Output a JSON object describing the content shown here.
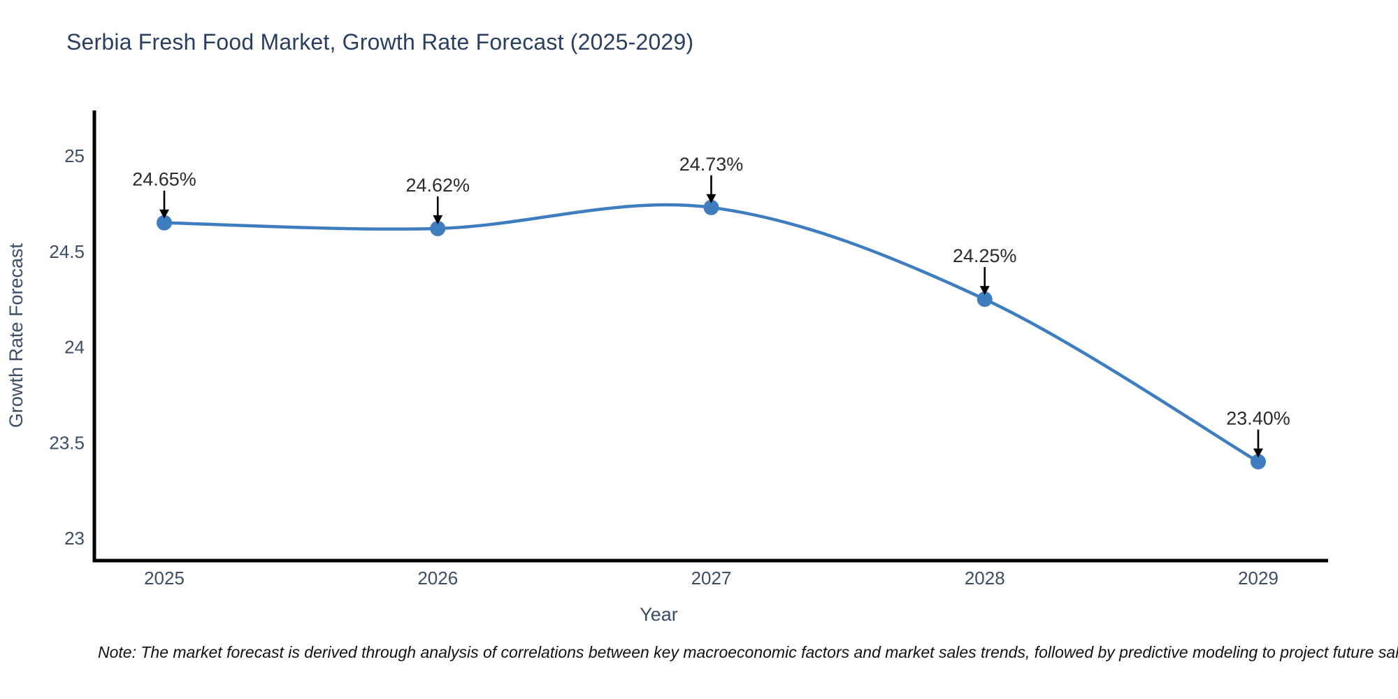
{
  "header": {
    "title": "Serbia Fresh Food Market, Growth Rate Forecast (2025-2029)"
  },
  "chart_data": {
    "type": "line",
    "line_shape": "spline",
    "markers": true,
    "title": "Serbia Fresh Food Market, Growth Rate Forecast (2025-2029)",
    "xlabel": "Year",
    "ylabel": "Growth Rate Forecast",
    "categories": [
      "2025",
      "2026",
      "2027",
      "2028",
      "2029"
    ],
    "series": [
      {
        "name": "Growth Rate Forecast",
        "values": [
          24.65,
          24.62,
          24.73,
          24.25,
          23.4
        ]
      }
    ],
    "point_labels": [
      "24.65%",
      "24.62%",
      "24.73%",
      "24.25%",
      "23.40%"
    ],
    "annotation_arrows": "down-arrow-to-point",
    "yticks": [
      25,
      24.5,
      24,
      23.5,
      23
    ],
    "ytick_labels": [
      "25",
      "24.5",
      "24",
      "23.5",
      "23"
    ],
    "ylim": [
      22.9,
      25.2
    ],
    "grid": false,
    "legend_position": "none"
  },
  "footnote": {
    "text": "Note: The market forecast is derived through analysis of correlations between key macroeconomic factors and market sales trends, followed by predictive modeling to project future sales"
  },
  "colors": {
    "background": "#ffffff",
    "line": "#3E7DBF",
    "marker": "#3E7DBF",
    "axis_line": "#000000",
    "title_text": "#2a3f5f",
    "tick_text": "#3d4d66",
    "axis_label_text": "#3d4d66",
    "annotation_text": "#2b2b2b",
    "arrow": "#000000",
    "note_text": "#111111"
  }
}
